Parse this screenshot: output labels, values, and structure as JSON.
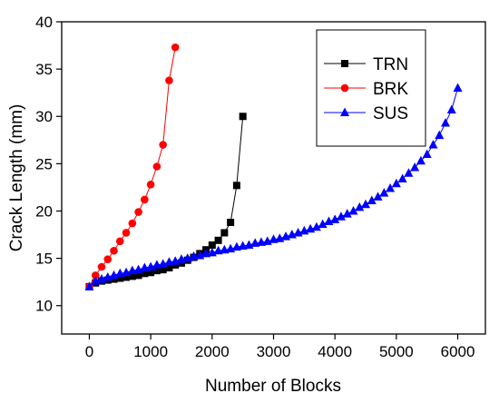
{
  "chart_data": {
    "type": "line",
    "title": "",
    "xlabel": "Number of Blocks",
    "ylabel": "Crack Length (mm)",
    "xlim": [
      -450,
      6450
    ],
    "ylim": [
      7,
      40
    ],
    "xticks": [
      0,
      1000,
      2000,
      3000,
      4000,
      5000,
      6000
    ],
    "yticks": [
      10,
      15,
      20,
      25,
      30,
      35,
      40
    ],
    "legend_position": "top-right",
    "grid": false,
    "series": [
      {
        "name": "TRN",
        "color": "#000000",
        "marker": "square",
        "x": [
          0,
          100,
          200,
          300,
          400,
          500,
          600,
          700,
          800,
          900,
          1000,
          1100,
          1200,
          1300,
          1400,
          1500,
          1600,
          1700,
          1800,
          1900,
          2000,
          2100,
          2200,
          2300,
          2400,
          2500
        ],
        "y": [
          12.0,
          12.4,
          12.6,
          12.7,
          12.8,
          12.9,
          13.0,
          13.1,
          13.2,
          13.4,
          13.5,
          13.7,
          13.8,
          14.0,
          14.3,
          14.5,
          14.8,
          15.1,
          15.5,
          15.9,
          16.4,
          16.9,
          17.7,
          18.8,
          22.7,
          30.0
        ]
      },
      {
        "name": "BRK",
        "color": "#ff0000",
        "marker": "circle",
        "x": [
          0,
          100,
          200,
          300,
          400,
          500,
          600,
          700,
          800,
          900,
          1000,
          1100,
          1200,
          1300,
          1400
        ],
        "y": [
          12.0,
          13.2,
          14.1,
          14.9,
          15.8,
          16.8,
          17.7,
          18.7,
          19.9,
          21.2,
          22.8,
          24.7,
          27.0,
          33.8,
          37.3
        ]
      },
      {
        "name": "SUS",
        "color": "#0000ff",
        "marker": "triangle",
        "x": [
          0,
          100,
          200,
          300,
          400,
          500,
          600,
          700,
          800,
          900,
          1000,
          1100,
          1200,
          1300,
          1400,
          1500,
          1600,
          1700,
          1800,
          1900,
          2000,
          2100,
          2200,
          2300,
          2400,
          2500,
          2600,
          2700,
          2800,
          2900,
          3000,
          3100,
          3200,
          3300,
          3400,
          3500,
          3600,
          3700,
          3800,
          3900,
          4000,
          4100,
          4200,
          4300,
          4400,
          4500,
          4600,
          4700,
          4800,
          4900,
          5000,
          5100,
          5200,
          5300,
          5400,
          5500,
          5600,
          5700,
          5800,
          5900,
          6000
        ],
        "y": [
          12.0,
          12.6,
          12.8,
          13.0,
          13.2,
          13.4,
          13.5,
          13.7,
          13.8,
          14.0,
          14.1,
          14.3,
          14.4,
          14.6,
          14.7,
          14.9,
          15.0,
          15.2,
          15.3,
          15.5,
          15.6,
          15.8,
          15.9,
          16.0,
          16.2,
          16.3,
          16.4,
          16.6,
          16.7,
          16.8,
          17.0,
          17.1,
          17.3,
          17.5,
          17.7,
          17.9,
          18.1,
          18.3,
          18.6,
          18.9,
          19.1,
          19.4,
          19.7,
          20.0,
          20.4,
          20.7,
          21.1,
          21.5,
          21.9,
          22.4,
          22.9,
          23.4,
          24.0,
          24.6,
          25.3,
          26.0,
          27.0,
          28.0,
          29.3,
          30.7,
          33.0
        ]
      }
    ]
  }
}
